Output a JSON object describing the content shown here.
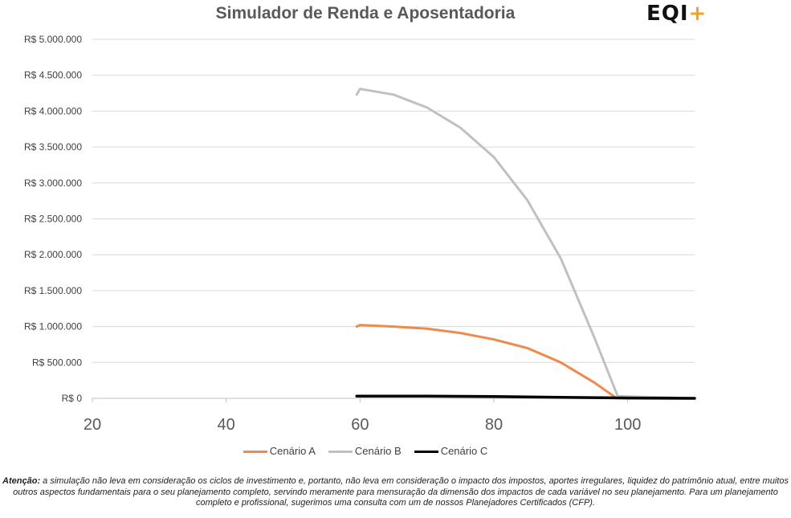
{
  "logo": {
    "text": "EQI",
    "plus": "+"
  },
  "disclaimer": {
    "lead": "Atenção:",
    "text": "a simulação não leva em consideração os ciclos de investimento e, portanto, não leva em consideração o impacto dos impostos, aportes irregulares, liquidez do patrimônio atual, entre muitos outros aspectos fundamentais para o seu planejamento completo, servindo meramente para mensuração da dimensão dos impactos de cada variável no seu planejamento. Para um planejamento completo e profissional, sugerimos uma consulta com um de nossos Planejadores Certificados (CFP)."
  },
  "chart_data": {
    "type": "line",
    "title": "Simulador de Renda e Aposentadoria",
    "xlabel": "",
    "ylabel": "",
    "xlim": [
      20,
      110
    ],
    "ylim": [
      0,
      5000000
    ],
    "xticks": [
      20,
      40,
      60,
      80,
      100
    ],
    "yticks": [
      0,
      500000,
      1000000,
      1500000,
      2000000,
      2500000,
      3000000,
      3500000,
      4000000,
      4500000,
      5000000
    ],
    "ytick_labels": [
      "R$ 0",
      "R$ 500.000",
      "R$ 1.000.000",
      "R$ 1.500.000",
      "R$ 2.000.000",
      "R$ 2.500.000",
      "R$ 3.000.000",
      "R$ 3.500.000",
      "R$ 4.000.000",
      "R$ 4.500.000",
      "R$ 5.000.000"
    ],
    "grid": true,
    "legend": "bottom",
    "series": [
      {
        "name": "Cenário A",
        "color": "#ed8a4c",
        "x": [
          59.5,
          60,
          65,
          70,
          75,
          80,
          85,
          90,
          95,
          98
        ],
        "y": [
          1000000,
          1020000,
          1000000,
          970000,
          910000,
          820000,
          700000,
          500000,
          220000,
          25000
        ]
      },
      {
        "name": "Cenário B",
        "color": "#c0c0c0",
        "x": [
          59.5,
          60,
          65,
          70,
          75,
          80,
          85,
          90,
          95,
          98.5,
          110
        ],
        "y": [
          4230000,
          4310000,
          4230000,
          4050000,
          3770000,
          3360000,
          2760000,
          1950000,
          850000,
          30000,
          0
        ]
      },
      {
        "name": "Cenário C",
        "color": "#000000",
        "x": [
          59.5,
          70,
          80,
          90,
          100,
          110
        ],
        "y": [
          30000,
          30000,
          25000,
          15000,
          5000,
          0
        ]
      }
    ]
  }
}
